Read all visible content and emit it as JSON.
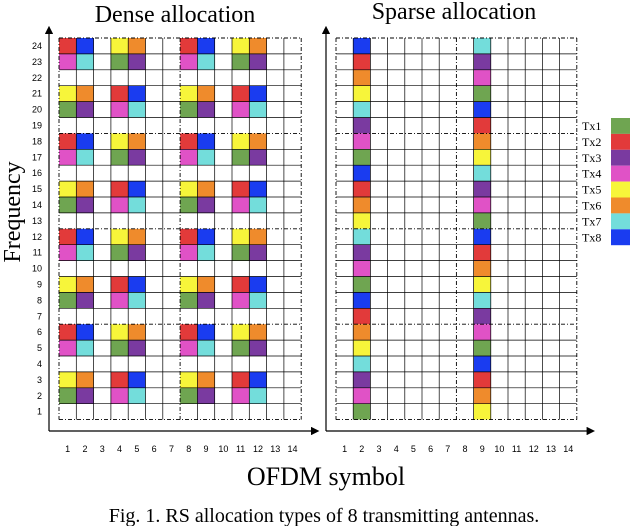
{
  "figure": {
    "ylabel": "Frequency",
    "xlabel": "OFDM symbol",
    "caption": "Fig. 1.  RS allocation types of 8 transmitting antennas."
  },
  "colors": {
    "Tx1": "#6fa551",
    "Tx2": "#e23a3a",
    "Tx3": "#7a3aa0",
    "Tx4": "#e052c6",
    "Tx5": "#f7f53a",
    "Tx6": "#ef8b2c",
    "Tx7": "#73dddb",
    "Tx8": "#1a3cf0"
  },
  "legend": [
    "Tx1",
    "Tx2",
    "Tx3",
    "Tx4",
    "Tx5",
    "Tx6",
    "Tx7",
    "Tx8"
  ],
  "panels": [
    {
      "title": "Dense allocation",
      "rows": 24,
      "cols": 14,
      "row_labels": [
        "1",
        "2",
        "3",
        "4",
        "5",
        "6",
        "7",
        "8",
        "9",
        "10",
        "11",
        "12",
        "13",
        "14",
        "15",
        "16",
        "17",
        "18",
        "19",
        "20",
        "21",
        "22",
        "23",
        "24"
      ],
      "col_labels": [
        "1",
        "2",
        "3",
        "4",
        "5",
        "6",
        "7",
        "8",
        "9",
        "10",
        "11",
        "12",
        "13",
        "14"
      ],
      "cells": [
        [
          24,
          1,
          "Tx2"
        ],
        [
          24,
          2,
          "Tx8"
        ],
        [
          24,
          4,
          "Tx5"
        ],
        [
          24,
          5,
          "Tx6"
        ],
        [
          24,
          8,
          "Tx2"
        ],
        [
          24,
          9,
          "Tx8"
        ],
        [
          24,
          11,
          "Tx5"
        ],
        [
          24,
          12,
          "Tx6"
        ],
        [
          23,
          1,
          "Tx4"
        ],
        [
          23,
          2,
          "Tx7"
        ],
        [
          23,
          4,
          "Tx1"
        ],
        [
          23,
          5,
          "Tx3"
        ],
        [
          23,
          8,
          "Tx4"
        ],
        [
          23,
          9,
          "Tx7"
        ],
        [
          23,
          11,
          "Tx1"
        ],
        [
          23,
          12,
          "Tx3"
        ],
        [
          21,
          1,
          "Tx5"
        ],
        [
          21,
          2,
          "Tx6"
        ],
        [
          21,
          4,
          "Tx2"
        ],
        [
          21,
          5,
          "Tx8"
        ],
        [
          21,
          8,
          "Tx5"
        ],
        [
          21,
          9,
          "Tx6"
        ],
        [
          21,
          11,
          "Tx2"
        ],
        [
          21,
          12,
          "Tx8"
        ],
        [
          20,
          1,
          "Tx1"
        ],
        [
          20,
          2,
          "Tx3"
        ],
        [
          20,
          4,
          "Tx4"
        ],
        [
          20,
          5,
          "Tx7"
        ],
        [
          20,
          8,
          "Tx1"
        ],
        [
          20,
          9,
          "Tx3"
        ],
        [
          20,
          11,
          "Tx4"
        ],
        [
          20,
          12,
          "Tx7"
        ],
        [
          18,
          1,
          "Tx2"
        ],
        [
          18,
          2,
          "Tx8"
        ],
        [
          18,
          4,
          "Tx5"
        ],
        [
          18,
          5,
          "Tx6"
        ],
        [
          18,
          8,
          "Tx2"
        ],
        [
          18,
          9,
          "Tx8"
        ],
        [
          18,
          11,
          "Tx5"
        ],
        [
          18,
          12,
          "Tx6"
        ],
        [
          17,
          1,
          "Tx4"
        ],
        [
          17,
          2,
          "Tx7"
        ],
        [
          17,
          4,
          "Tx1"
        ],
        [
          17,
          5,
          "Tx3"
        ],
        [
          17,
          8,
          "Tx4"
        ],
        [
          17,
          9,
          "Tx7"
        ],
        [
          17,
          11,
          "Tx1"
        ],
        [
          17,
          12,
          "Tx3"
        ],
        [
          15,
          1,
          "Tx5"
        ],
        [
          15,
          2,
          "Tx6"
        ],
        [
          15,
          4,
          "Tx2"
        ],
        [
          15,
          5,
          "Tx8"
        ],
        [
          15,
          8,
          "Tx5"
        ],
        [
          15,
          9,
          "Tx6"
        ],
        [
          15,
          11,
          "Tx2"
        ],
        [
          15,
          12,
          "Tx8"
        ],
        [
          14,
          1,
          "Tx1"
        ],
        [
          14,
          2,
          "Tx3"
        ],
        [
          14,
          4,
          "Tx4"
        ],
        [
          14,
          5,
          "Tx7"
        ],
        [
          14,
          8,
          "Tx1"
        ],
        [
          14,
          9,
          "Tx3"
        ],
        [
          14,
          11,
          "Tx4"
        ],
        [
          14,
          12,
          "Tx7"
        ],
        [
          12,
          1,
          "Tx2"
        ],
        [
          12,
          2,
          "Tx8"
        ],
        [
          12,
          4,
          "Tx5"
        ],
        [
          12,
          5,
          "Tx6"
        ],
        [
          12,
          8,
          "Tx2"
        ],
        [
          12,
          9,
          "Tx8"
        ],
        [
          12,
          11,
          "Tx5"
        ],
        [
          12,
          12,
          "Tx6"
        ],
        [
          11,
          1,
          "Tx4"
        ],
        [
          11,
          2,
          "Tx7"
        ],
        [
          11,
          4,
          "Tx1"
        ],
        [
          11,
          5,
          "Tx3"
        ],
        [
          11,
          8,
          "Tx4"
        ],
        [
          11,
          9,
          "Tx7"
        ],
        [
          11,
          11,
          "Tx1"
        ],
        [
          11,
          12,
          "Tx3"
        ],
        [
          9,
          1,
          "Tx5"
        ],
        [
          9,
          2,
          "Tx6"
        ],
        [
          9,
          4,
          "Tx2"
        ],
        [
          9,
          5,
          "Tx8"
        ],
        [
          9,
          8,
          "Tx5"
        ],
        [
          9,
          9,
          "Tx6"
        ],
        [
          9,
          11,
          "Tx2"
        ],
        [
          9,
          12,
          "Tx8"
        ],
        [
          8,
          1,
          "Tx1"
        ],
        [
          8,
          2,
          "Tx3"
        ],
        [
          8,
          4,
          "Tx4"
        ],
        [
          8,
          5,
          "Tx7"
        ],
        [
          8,
          8,
          "Tx1"
        ],
        [
          8,
          9,
          "Tx3"
        ],
        [
          8,
          11,
          "Tx4"
        ],
        [
          8,
          12,
          "Tx7"
        ],
        [
          6,
          1,
          "Tx2"
        ],
        [
          6,
          2,
          "Tx8"
        ],
        [
          6,
          4,
          "Tx5"
        ],
        [
          6,
          5,
          "Tx6"
        ],
        [
          6,
          8,
          "Tx2"
        ],
        [
          6,
          9,
          "Tx8"
        ],
        [
          6,
          11,
          "Tx5"
        ],
        [
          6,
          12,
          "Tx6"
        ],
        [
          5,
          1,
          "Tx4"
        ],
        [
          5,
          2,
          "Tx7"
        ],
        [
          5,
          4,
          "Tx1"
        ],
        [
          5,
          5,
          "Tx3"
        ],
        [
          5,
          8,
          "Tx4"
        ],
        [
          5,
          9,
          "Tx7"
        ],
        [
          5,
          11,
          "Tx1"
        ],
        [
          5,
          12,
          "Tx3"
        ],
        [
          3,
          1,
          "Tx5"
        ],
        [
          3,
          2,
          "Tx6"
        ],
        [
          3,
          4,
          "Tx2"
        ],
        [
          3,
          5,
          "Tx8"
        ],
        [
          3,
          8,
          "Tx5"
        ],
        [
          3,
          9,
          "Tx6"
        ],
        [
          3,
          11,
          "Tx2"
        ],
        [
          3,
          12,
          "Tx8"
        ],
        [
          2,
          1,
          "Tx1"
        ],
        [
          2,
          2,
          "Tx3"
        ],
        [
          2,
          4,
          "Tx4"
        ],
        [
          2,
          5,
          "Tx7"
        ],
        [
          2,
          8,
          "Tx1"
        ],
        [
          2,
          9,
          "Tx3"
        ],
        [
          2,
          11,
          "Tx4"
        ],
        [
          2,
          12,
          "Tx7"
        ]
      ]
    },
    {
      "title": "Sparse allocation",
      "rows": 24,
      "cols": 14,
      "row_labels": [],
      "col_labels": [
        "1",
        "2",
        "3",
        "4",
        "5",
        "6",
        "7",
        "8",
        "9",
        "10",
        "11",
        "12",
        "13",
        "14"
      ],
      "cells": [
        [
          24,
          2,
          "Tx8"
        ],
        [
          23,
          2,
          "Tx2"
        ],
        [
          22,
          2,
          "Tx6"
        ],
        [
          21,
          2,
          "Tx5"
        ],
        [
          20,
          2,
          "Tx7"
        ],
        [
          19,
          2,
          "Tx3"
        ],
        [
          18,
          2,
          "Tx4"
        ],
        [
          17,
          2,
          "Tx1"
        ],
        [
          16,
          2,
          "Tx8"
        ],
        [
          15,
          2,
          "Tx2"
        ],
        [
          14,
          2,
          "Tx6"
        ],
        [
          13,
          2,
          "Tx5"
        ],
        [
          12,
          2,
          "Tx7"
        ],
        [
          11,
          2,
          "Tx3"
        ],
        [
          10,
          2,
          "Tx4"
        ],
        [
          9,
          2,
          "Tx1"
        ],
        [
          8,
          2,
          "Tx8"
        ],
        [
          7,
          2,
          "Tx2"
        ],
        [
          6,
          2,
          "Tx6"
        ],
        [
          5,
          2,
          "Tx5"
        ],
        [
          4,
          2,
          "Tx7"
        ],
        [
          3,
          2,
          "Tx3"
        ],
        [
          2,
          2,
          "Tx4"
        ],
        [
          1,
          2,
          "Tx1"
        ],
        [
          24,
          9,
          "Tx7"
        ],
        [
          23,
          9,
          "Tx3"
        ],
        [
          22,
          9,
          "Tx4"
        ],
        [
          21,
          9,
          "Tx1"
        ],
        [
          20,
          9,
          "Tx8"
        ],
        [
          19,
          9,
          "Tx2"
        ],
        [
          18,
          9,
          "Tx6"
        ],
        [
          17,
          9,
          "Tx5"
        ],
        [
          16,
          9,
          "Tx7"
        ],
        [
          15,
          9,
          "Tx3"
        ],
        [
          14,
          9,
          "Tx4"
        ],
        [
          13,
          9,
          "Tx1"
        ],
        [
          12,
          9,
          "Tx8"
        ],
        [
          11,
          9,
          "Tx2"
        ],
        [
          10,
          9,
          "Tx6"
        ],
        [
          9,
          9,
          "Tx5"
        ],
        [
          8,
          9,
          "Tx7"
        ],
        [
          7,
          9,
          "Tx3"
        ],
        [
          6,
          9,
          "Tx4"
        ],
        [
          5,
          9,
          "Tx1"
        ],
        [
          4,
          9,
          "Tx8"
        ],
        [
          3,
          9,
          "Tx2"
        ],
        [
          2,
          9,
          "Tx6"
        ],
        [
          1,
          9,
          "Tx5"
        ]
      ]
    }
  ]
}
